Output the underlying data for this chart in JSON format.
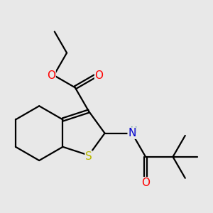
{
  "background_color": "#e8e8e8",
  "atom_colors": {
    "C": "#000000",
    "O": "#ff0000",
    "N": "#0000cd",
    "S": "#b8b800",
    "H": "#4a9090"
  },
  "bond_color": "#000000",
  "bond_width": 1.6,
  "figsize": [
    3.0,
    3.0
  ],
  "dpi": 100
}
